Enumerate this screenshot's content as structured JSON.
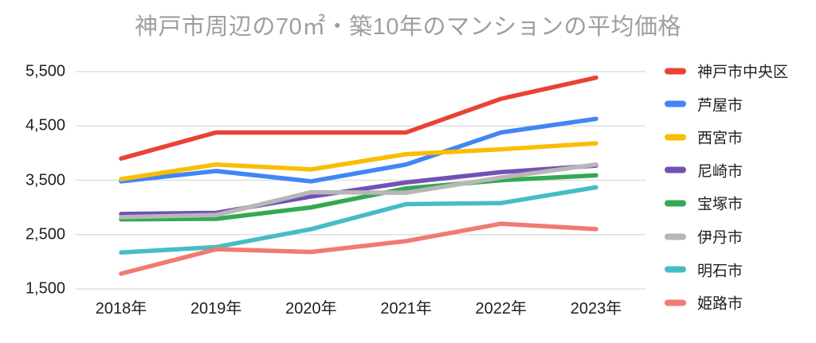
{
  "chart_data": {
    "type": "line",
    "title": "神戸市周辺の70㎡・築10年のマンションの平均価格",
    "categories": [
      "2018年",
      "2019年",
      "2020年",
      "2021年",
      "2022年",
      "2023年"
    ],
    "series": [
      {
        "name": "神戸市中央区",
        "color": "#ea4335",
        "values": [
          3900,
          4380,
          4380,
          4380,
          5000,
          5390
        ]
      },
      {
        "name": "芦屋市",
        "color": "#4285f4",
        "values": [
          3480,
          3670,
          3480,
          3790,
          4380,
          4630
        ]
      },
      {
        "name": "西宮市",
        "color": "#fbbc04",
        "values": [
          3520,
          3790,
          3700,
          3980,
          4070,
          4180
        ]
      },
      {
        "name": "尼崎市",
        "color": "#7252b5",
        "values": [
          2880,
          2900,
          3200,
          3460,
          3650,
          3770
        ]
      },
      {
        "name": "宝塚市",
        "color": "#34a853",
        "values": [
          2780,
          2790,
          3000,
          3350,
          3500,
          3590
        ]
      },
      {
        "name": "伊丹市",
        "color": "#b7b7b7",
        "values": [
          2820,
          2860,
          3280,
          3270,
          3550,
          3790
        ]
      },
      {
        "name": "明石市",
        "color": "#46bdc6",
        "values": [
          2170,
          2270,
          2600,
          3060,
          3080,
          3370
        ]
      },
      {
        "name": "姫路市",
        "color": "#f07b72",
        "values": [
          1780,
          2230,
          2180,
          2380,
          2700,
          2600
        ]
      }
    ],
    "yticks": [
      "5,500",
      "4,500",
      "3,500",
      "2,500",
      "1,500"
    ],
    "ytick_values": [
      5500,
      4500,
      3500,
      2500,
      1500
    ],
    "ylim": [
      1500,
      5500
    ],
    "grid": "horizontal",
    "legend_position": "right",
    "colors": {
      "title_text": "#9e9e9e",
      "axis_text": "#1f1f1f",
      "gridline": "#e0e0e0",
      "background": "#ffffff"
    }
  }
}
